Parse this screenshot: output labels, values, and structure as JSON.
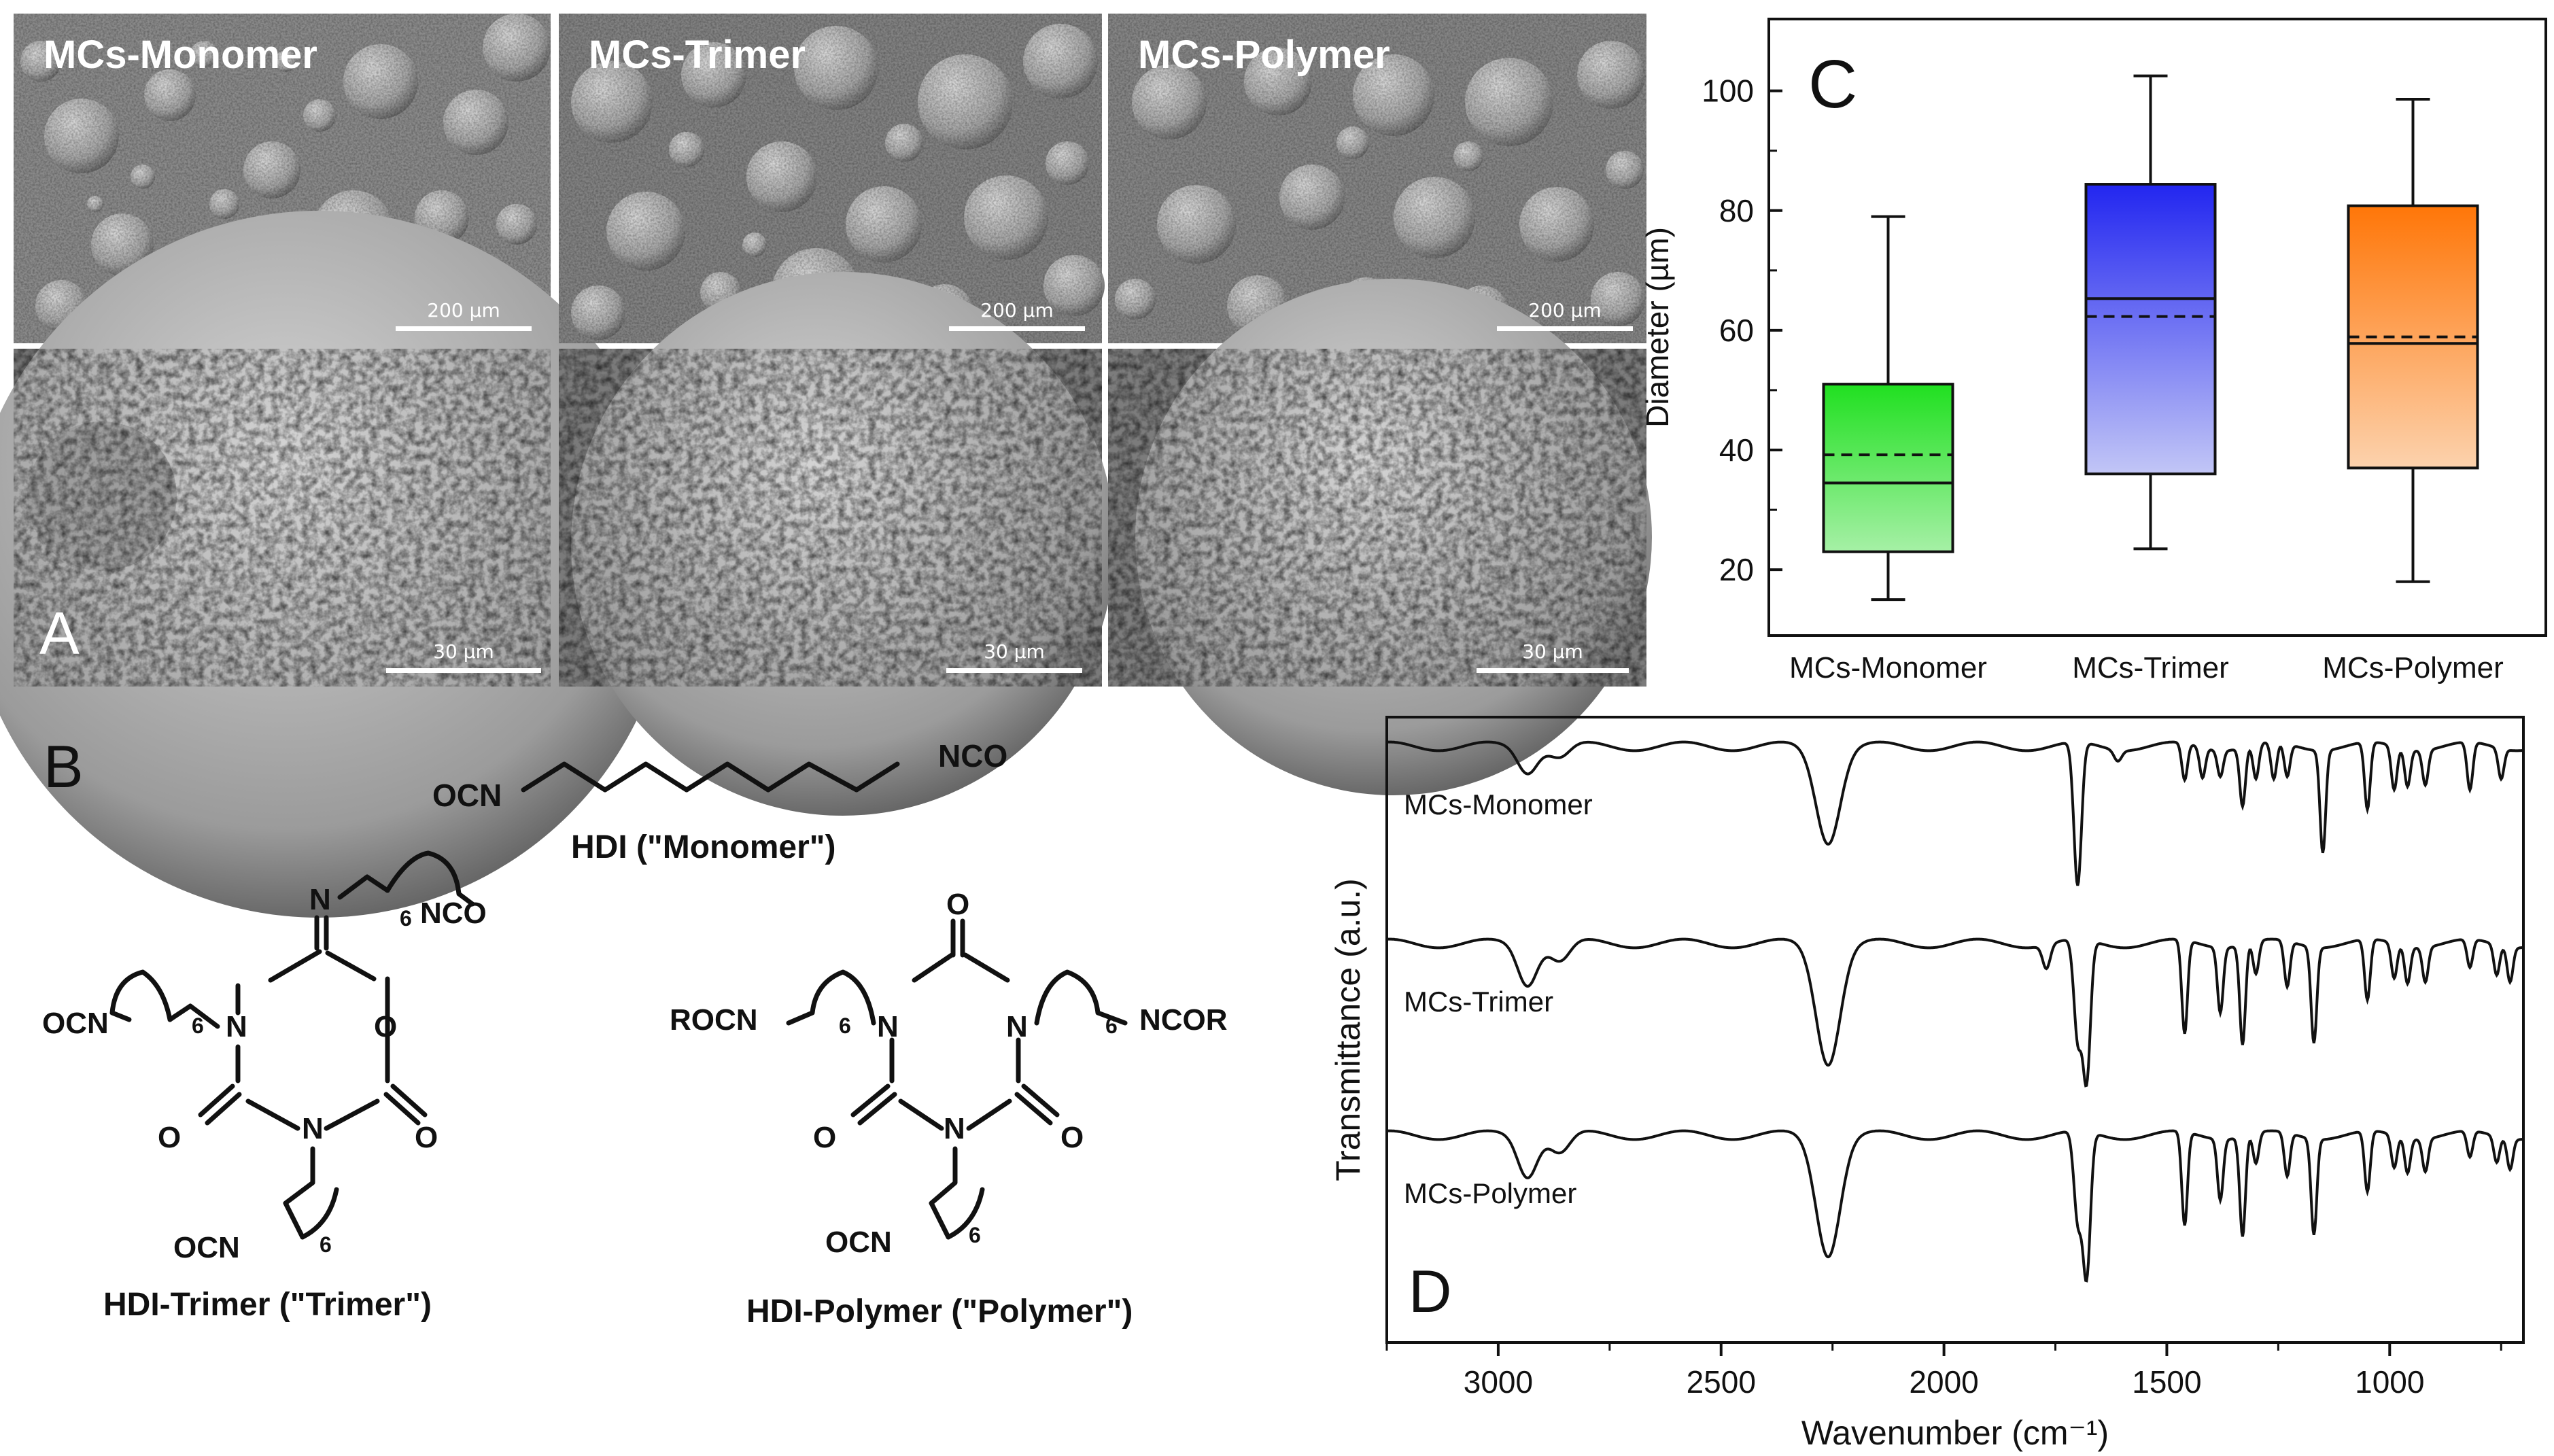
{
  "panel_a": {
    "letter": "A",
    "columns": [
      {
        "label": "MCs-Monomer",
        "scale_low": "200 µm",
        "scale_high": "30 µm"
      },
      {
        "label": "MCs-Trimer",
        "scale_low": "200 µm",
        "scale_high": "30 µm"
      },
      {
        "label": "MCs-Polymer",
        "scale_low": "200 µm",
        "scale_high": "30 µm"
      }
    ]
  },
  "panel_b": {
    "letter": "B",
    "hdi_left": "OCN",
    "hdi_right": "NCO",
    "hdi_name": "HDI (\"Monomer\")",
    "trimer_name": "HDI-Trimer (\"Trimer\")",
    "polymer_name": "HDI-Polymer (\"Polymer\")",
    "ocn": "OCN",
    "nco": "NCO",
    "rocn": "ROCN",
    "ncor": "NCOR",
    "n": "N",
    "o": "O",
    "sub6": "6"
  },
  "chart_data": [
    {
      "type": "box",
      "panel": "C",
      "title": "",
      "xlabel": "",
      "ylabel": "Diameter (µm)",
      "ylim": [
        9,
        112
      ],
      "yticks": [
        20,
        40,
        60,
        80,
        100
      ],
      "categories": [
        "MCs-Monomer",
        "MCs-Trimer",
        "MCs-Polymer"
      ],
      "boxes": [
        {
          "category": "MCs-Monomer",
          "min": 15,
          "q1": 23,
          "median": 34.5,
          "mean": 39.2,
          "q3": 51,
          "max": 79,
          "color": "#2ee02e"
        },
        {
          "category": "MCs-Trimer",
          "min": 23.5,
          "q1": 36,
          "median": 65.3,
          "mean": 62.3,
          "q3": 84.4,
          "max": 102.5,
          "color": "#2a2ff0"
        },
        {
          "category": "MCs-Polymer",
          "min": 18,
          "q1": 37,
          "median": 57.8,
          "mean": 58.9,
          "q3": 80.8,
          "max": 98.6,
          "color": "#ff7a10"
        }
      ],
      "legend": "none"
    },
    {
      "type": "line",
      "panel": "D",
      "title": "",
      "xlabel": "Wavenumber (cm⁻¹)",
      "ylabel": "Transmittance (a.u.)",
      "xlim": [
        3250,
        700
      ],
      "xticks": [
        3000,
        2500,
        2000,
        1500,
        1000
      ],
      "x_reversed": true,
      "y_ticks_shown": false,
      "series": [
        {
          "name": "MCs-Monomer",
          "peaks": [
            [
              2935,
              0.11
            ],
            [
              2860,
              0.05
            ],
            [
              2260,
              0.43
            ],
            [
              1700,
              0.66
            ],
            [
              1610,
              0.05
            ],
            [
              1460,
              0.17
            ],
            [
              1420,
              0.14
            ],
            [
              1380,
              0.12
            ],
            [
              1330,
              0.27
            ],
            [
              1300,
              0.16
            ],
            [
              1260,
              0.17
            ],
            [
              1230,
              0.15
            ],
            [
              1150,
              0.47
            ],
            [
              1050,
              0.31
            ],
            [
              990,
              0.2
            ],
            [
              960,
              0.17
            ],
            [
              920,
              0.16
            ],
            [
              820,
              0.22
            ],
            [
              750,
              0.14
            ]
          ]
        },
        {
          "name": "MCs-Trimer",
          "peaks": [
            [
              2935,
              0.18
            ],
            [
              2860,
              0.08
            ],
            [
              2260,
              0.54
            ],
            [
              1770,
              0.11
            ],
            [
              1700,
              0.45
            ],
            [
              1680,
              0.64
            ],
            [
              1460,
              0.43
            ],
            [
              1380,
              0.3
            ],
            [
              1330,
              0.46
            ],
            [
              1300,
              0.15
            ],
            [
              1230,
              0.21
            ],
            [
              1170,
              0.44
            ],
            [
              1050,
              0.28
            ],
            [
              990,
              0.16
            ],
            [
              960,
              0.17
            ],
            [
              920,
              0.16
            ],
            [
              820,
              0.13
            ],
            [
              760,
              0.14
            ],
            [
              730,
              0.16
            ]
          ]
        },
        {
          "name": "MCs-Polymer",
          "peaks": [
            [
              2935,
              0.18
            ],
            [
              2860,
              0.08
            ],
            [
              2260,
              0.54
            ],
            [
              1700,
              0.4
            ],
            [
              1680,
              0.66
            ],
            [
              1460,
              0.43
            ],
            [
              1380,
              0.28
            ],
            [
              1330,
              0.46
            ],
            [
              1300,
              0.14
            ],
            [
              1230,
              0.2
            ],
            [
              1170,
              0.44
            ],
            [
              1050,
              0.28
            ],
            [
              990,
              0.15
            ],
            [
              960,
              0.16
            ],
            [
              920,
              0.15
            ],
            [
              820,
              0.12
            ],
            [
              760,
              0.12
            ],
            [
              730,
              0.14
            ]
          ]
        }
      ]
    }
  ]
}
